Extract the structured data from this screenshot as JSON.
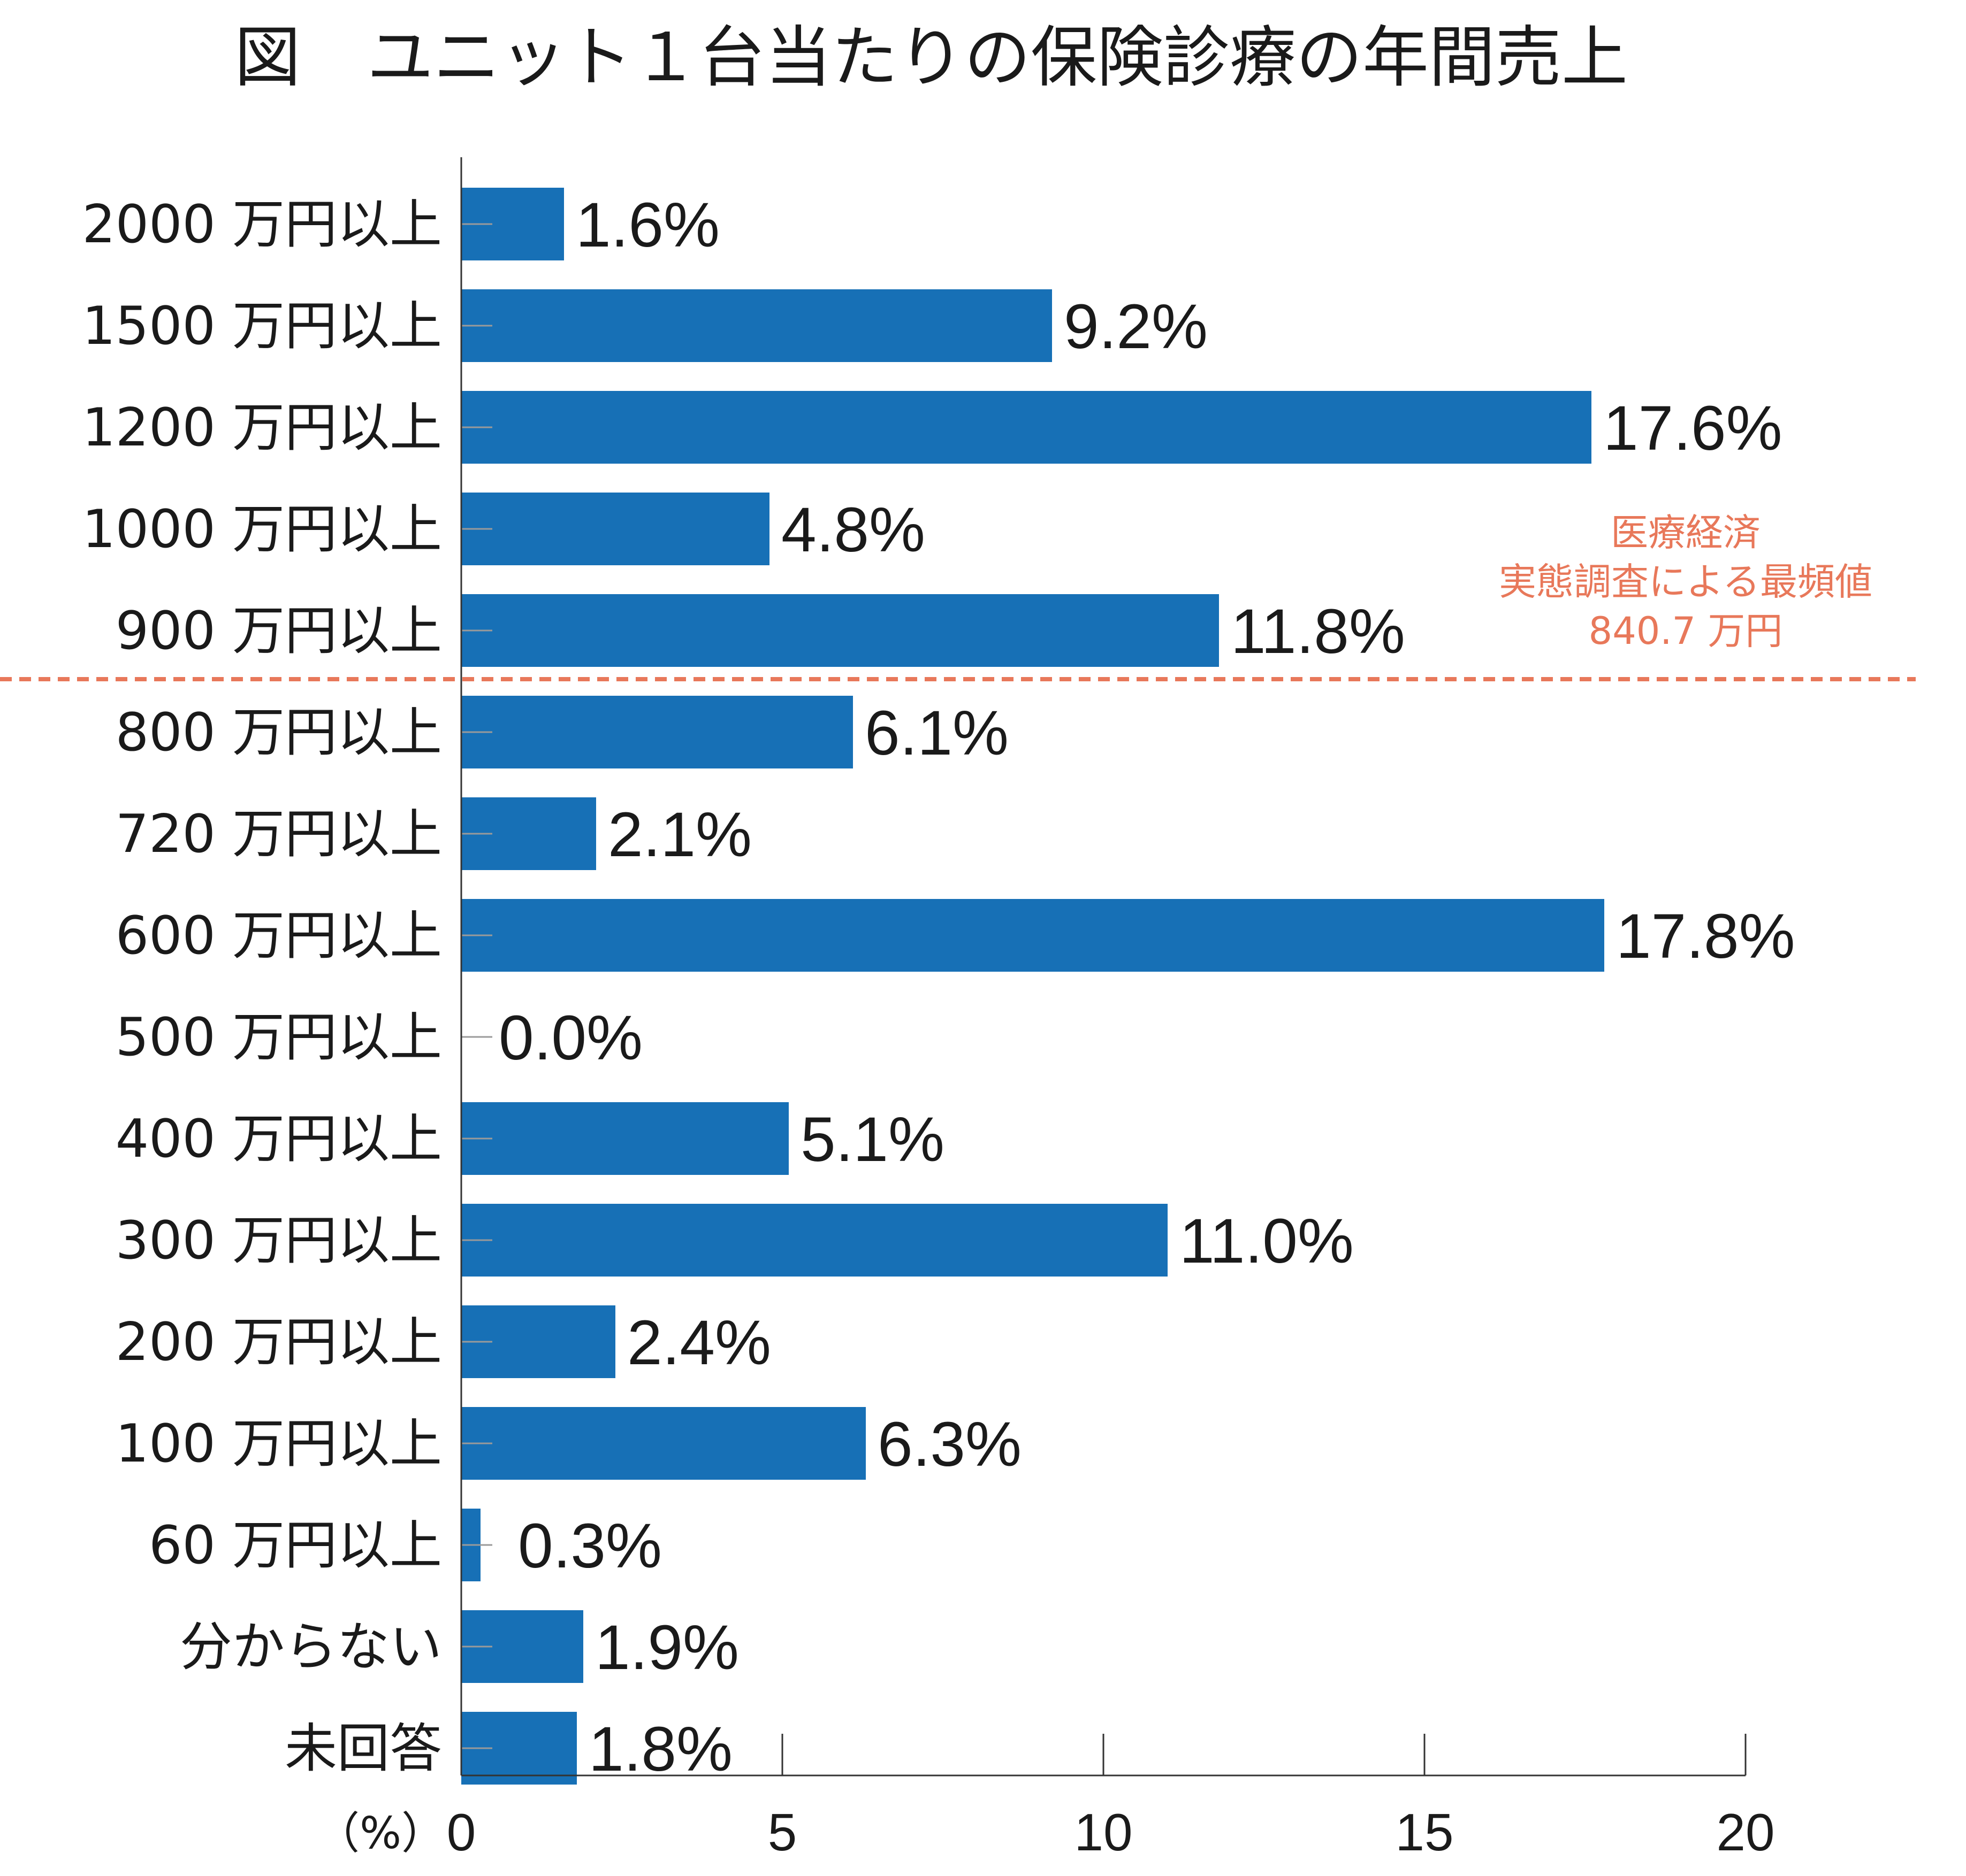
{
  "chart_data": {
    "type": "bar",
    "orientation": "horizontal",
    "title": "図　ユニット１台当たりの保険診療の年間売上",
    "categories": [
      "2000 万円以上",
      "1500 万円以上",
      "1200 万円以上",
      "1000 万円以上",
      "900 万円以上",
      "800 万円以上",
      "720 万円以上",
      "600 万円以上",
      "500 万円以上",
      "400 万円以上",
      "300 万円以上",
      "200 万円以上",
      "100 万円以上",
      "60 万円以上",
      "分からない",
      "未回答"
    ],
    "values": [
      1.6,
      9.2,
      17.6,
      4.8,
      11.8,
      6.1,
      2.1,
      17.8,
      0.0,
      5.1,
      11.0,
      2.4,
      6.3,
      0.3,
      1.9,
      1.8
    ],
    "value_labels": [
      "1.6%",
      "9.2%",
      "17.6%",
      "4.8%",
      "11.8%",
      "6.1%",
      "2.1%",
      "17.8%",
      "0.0%",
      "5.1%",
      "11.0%",
      "2.4%",
      "6.3%",
      "0.3%",
      "1.9%",
      "1.8%"
    ],
    "xlim": [
      0,
      20
    ],
    "x_ticks": [
      0,
      5,
      10,
      15,
      20
    ],
    "x_tick_labels": [
      "0",
      "5",
      "10",
      "15",
      "20"
    ],
    "x_unit_label": "（%）",
    "grid": false,
    "legend": "none",
    "reference_line": {
      "between_categories": [
        "900 万円以上",
        "800 万円以上"
      ],
      "style": "dashed",
      "annotation": [
        "医療経済",
        "実態調査による最頻値",
        "840.7 万円"
      ]
    },
    "colors": {
      "bar": "#1770b6",
      "reference": "#e8785a",
      "text": "#1a1a1a",
      "axis": "#333333"
    }
  }
}
